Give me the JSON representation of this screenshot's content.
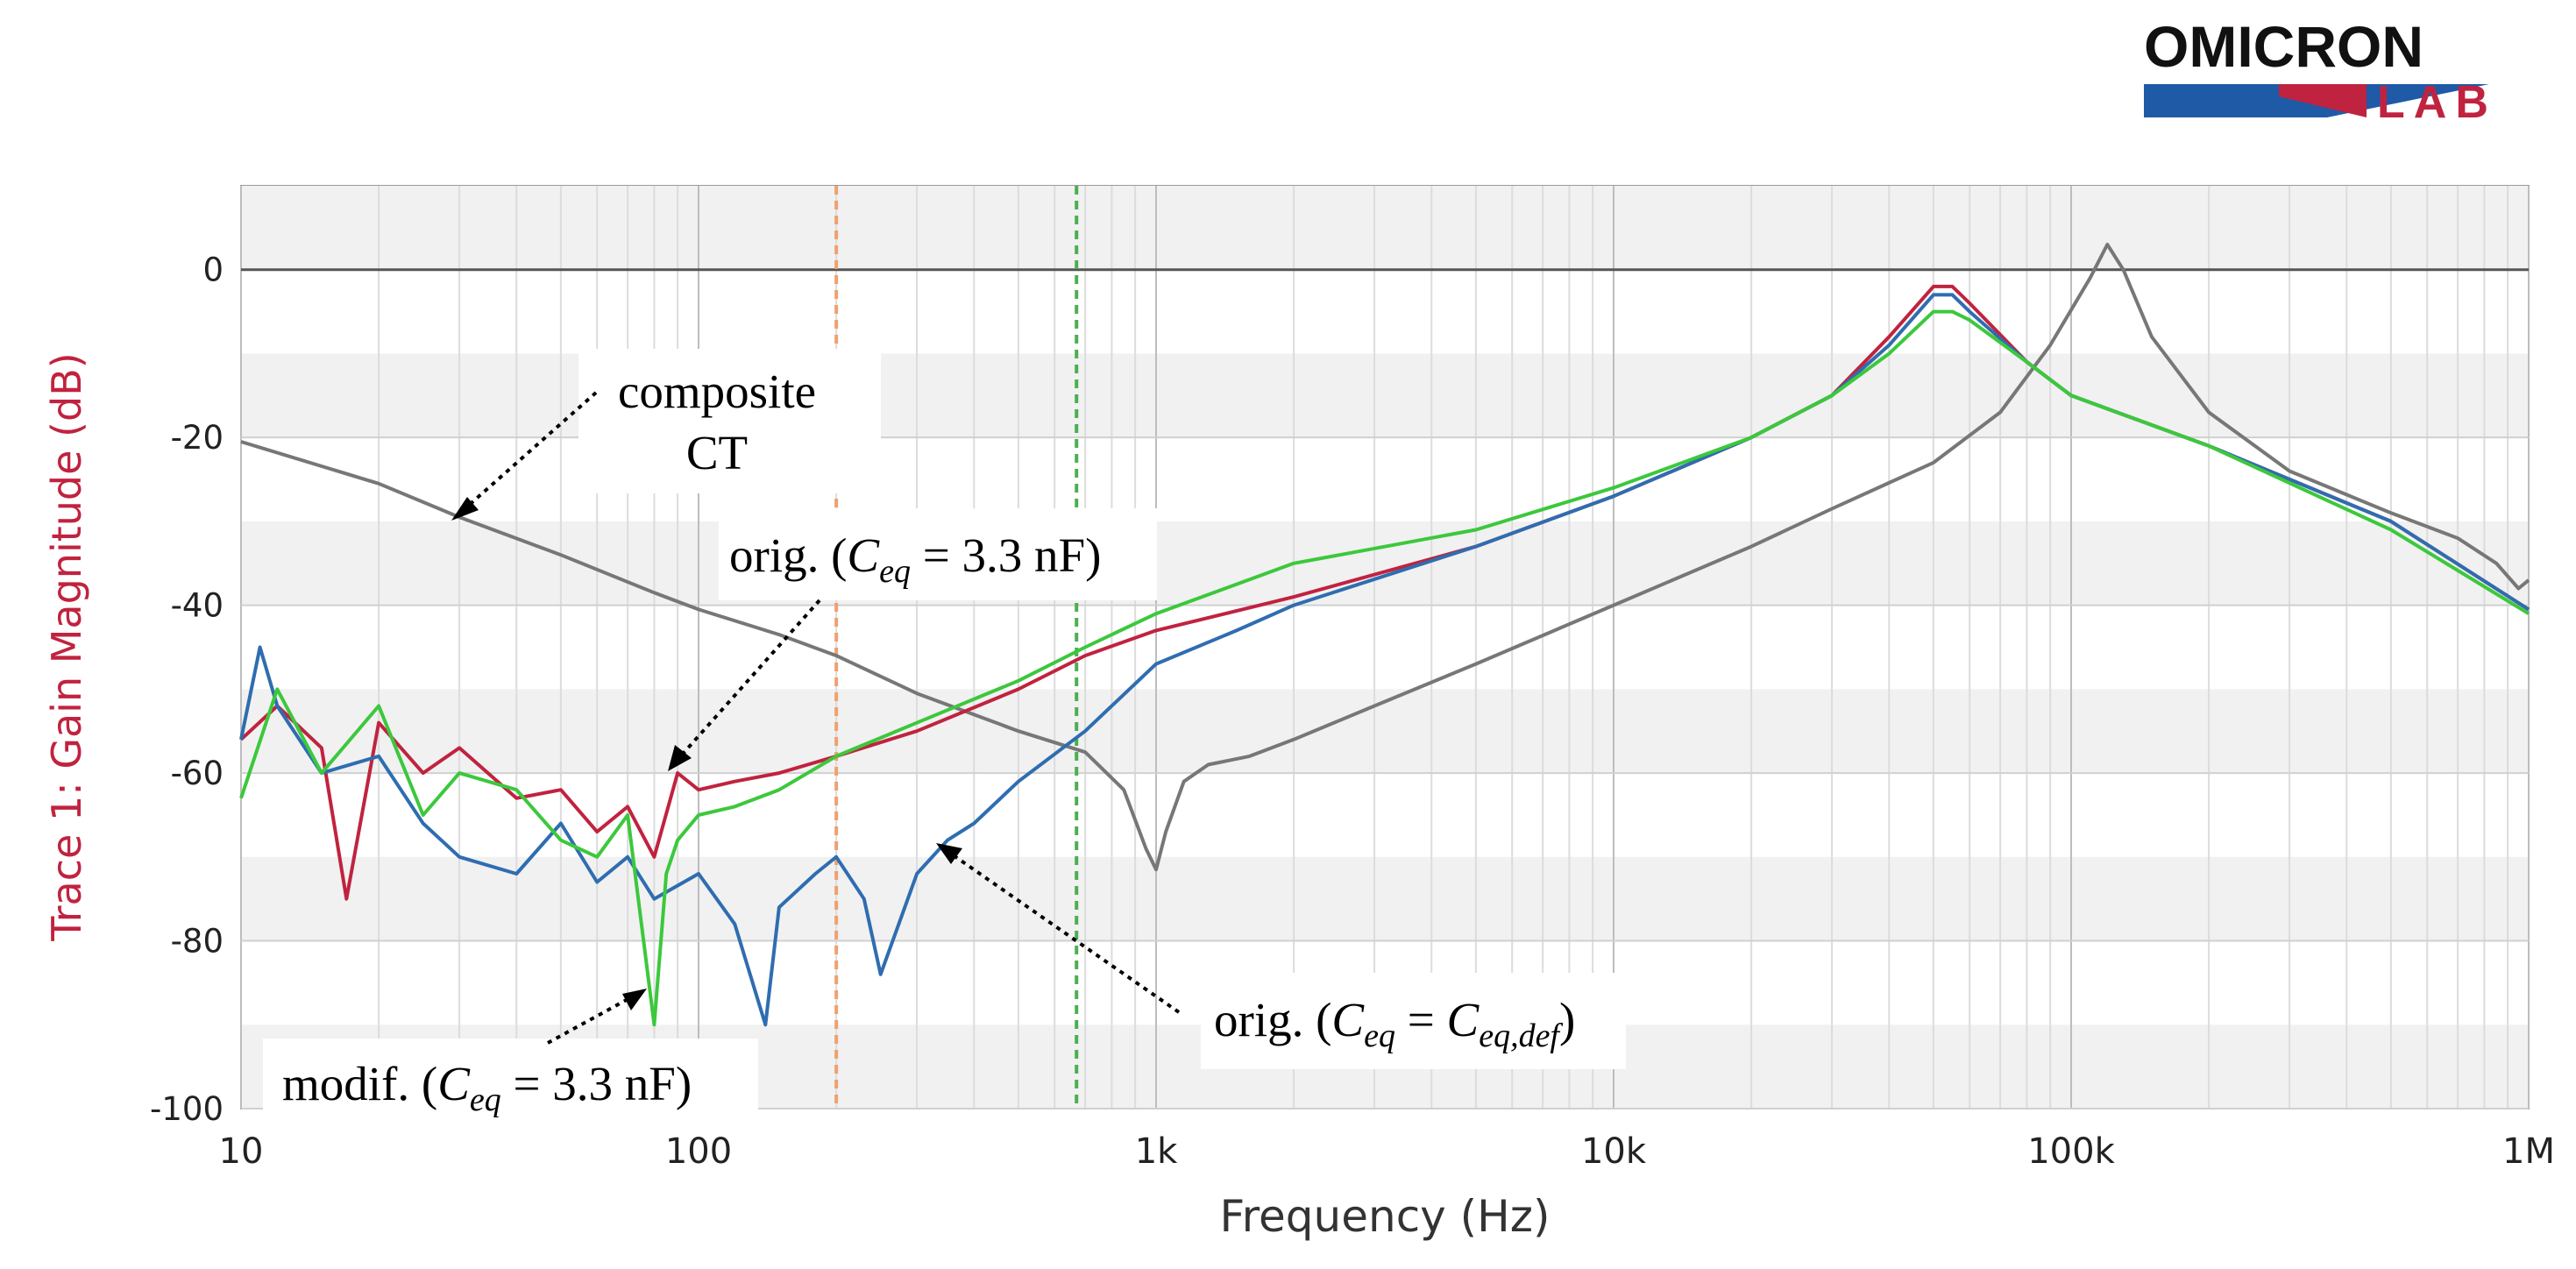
{
  "logo": {
    "line1": "OMICRON",
    "line2": "LAB",
    "brand_red": "#c0233f",
    "brand_blue": "#1f5aa6"
  },
  "chart_data": {
    "type": "line",
    "xscale": "log",
    "xlim": [
      10,
      1000000
    ],
    "ylim": [
      -100,
      10
    ],
    "xlabel": "Frequency (Hz)",
    "ylabel": "Trace 1: Gain Magnitude (dB)",
    "xticks": [
      {
        "v": 10,
        "label": "10"
      },
      {
        "v": 100,
        "label": "100"
      },
      {
        "v": 1000,
        "label": "1k"
      },
      {
        "v": 10000,
        "label": "10k"
      },
      {
        "v": 100000,
        "label": "100k"
      },
      {
        "v": 1000000,
        "label": "1M"
      }
    ],
    "yticks": [
      {
        "v": 0,
        "label": "0"
      },
      {
        "v": -20,
        "label": "-20"
      },
      {
        "v": -40,
        "label": "-40"
      },
      {
        "v": -60,
        "label": "-60"
      },
      {
        "v": -80,
        "label": "-80"
      },
      {
        "v": -100,
        "label": "-100"
      }
    ],
    "cursors": [
      {
        "x": 200,
        "color": "#f0a070"
      },
      {
        "x": 670,
        "color": "#4caf50"
      }
    ],
    "series": [
      {
        "name": "composite CT",
        "color": "#777777",
        "points": [
          [
            10,
            -20.5
          ],
          [
            20,
            -25.5
          ],
          [
            30,
            -29.5
          ],
          [
            50,
            -34
          ],
          [
            80,
            -38.5
          ],
          [
            100,
            -40.5
          ],
          [
            150,
            -43.5
          ],
          [
            200,
            -46
          ],
          [
            300,
            -50.5
          ],
          [
            500,
            -55
          ],
          [
            700,
            -57.5
          ],
          [
            850,
            -62
          ],
          [
            950,
            -69
          ],
          [
            1000,
            -71.5
          ],
          [
            1050,
            -67
          ],
          [
            1150,
            -61
          ],
          [
            1300,
            -59
          ],
          [
            1600,
            -58
          ],
          [
            2000,
            -56
          ],
          [
            3000,
            -52
          ],
          [
            5000,
            -47
          ],
          [
            10000,
            -40
          ],
          [
            20000,
            -33
          ],
          [
            30000,
            -28.5
          ],
          [
            50000,
            -23
          ],
          [
            70000,
            -17
          ],
          [
            90000,
            -9
          ],
          [
            110000,
            -1
          ],
          [
            120000,
            3
          ],
          [
            130000,
            0
          ],
          [
            150000,
            -8
          ],
          [
            200000,
            -17
          ],
          [
            300000,
            -24
          ],
          [
            500000,
            -29
          ],
          [
            700000,
            -32
          ],
          [
            850000,
            -35
          ],
          [
            950000,
            -38
          ],
          [
            1000000,
            -37
          ]
        ]
      },
      {
        "name": "orig. (Ceq = 3.3 nF)",
        "color": "#c0233f",
        "points": [
          [
            10,
            -56
          ],
          [
            12,
            -52
          ],
          [
            15,
            -57
          ],
          [
            17,
            -75
          ],
          [
            20,
            -54
          ],
          [
            25,
            -60
          ],
          [
            30,
            -57
          ],
          [
            40,
            -63
          ],
          [
            50,
            -62
          ],
          [
            60,
            -67
          ],
          [
            70,
            -64
          ],
          [
            80,
            -70
          ],
          [
            90,
            -60
          ],
          [
            100,
            -62
          ],
          [
            120,
            -61
          ],
          [
            150,
            -60
          ],
          [
            200,
            -58
          ],
          [
            300,
            -55
          ],
          [
            500,
            -50
          ],
          [
            700,
            -46
          ],
          [
            1000,
            -43
          ],
          [
            2000,
            -39
          ],
          [
            5000,
            -33
          ],
          [
            10000,
            -27
          ],
          [
            20000,
            -20
          ],
          [
            30000,
            -15
          ],
          [
            40000,
            -8
          ],
          [
            50000,
            -2
          ],
          [
            55000,
            -2
          ],
          [
            60000,
            -4
          ],
          [
            80000,
            -11
          ],
          [
            100000,
            -15
          ],
          [
            200000,
            -21
          ],
          [
            500000,
            -30
          ],
          [
            1000000,
            -40.5
          ]
        ]
      },
      {
        "name": "orig. (Ceq = Ceq,def)",
        "color": "#2f6db0",
        "points": [
          [
            10,
            -56
          ],
          [
            11,
            -45
          ],
          [
            12,
            -52
          ],
          [
            15,
            -60
          ],
          [
            20,
            -58
          ],
          [
            25,
            -66
          ],
          [
            30,
            -70
          ],
          [
            40,
            -72
          ],
          [
            50,
            -66
          ],
          [
            60,
            -73
          ],
          [
            70,
            -70
          ],
          [
            80,
            -75
          ],
          [
            100,
            -72
          ],
          [
            120,
            -78
          ],
          [
            140,
            -90
          ],
          [
            150,
            -76
          ],
          [
            180,
            -72
          ],
          [
            200,
            -70
          ],
          [
            230,
            -75
          ],
          [
            250,
            -84
          ],
          [
            300,
            -72
          ],
          [
            350,
            -68
          ],
          [
            400,
            -66
          ],
          [
            500,
            -61
          ],
          [
            700,
            -55
          ],
          [
            1000,
            -47
          ],
          [
            1500,
            -43
          ],
          [
            2000,
            -40
          ],
          [
            5000,
            -33
          ],
          [
            10000,
            -27
          ],
          [
            20000,
            -20
          ],
          [
            30000,
            -15
          ],
          [
            40000,
            -9
          ],
          [
            50000,
            -3
          ],
          [
            55000,
            -3
          ],
          [
            60000,
            -5
          ],
          [
            80000,
            -11
          ],
          [
            100000,
            -15
          ],
          [
            200000,
            -21
          ],
          [
            500000,
            -30
          ],
          [
            1000000,
            -40.5
          ]
        ]
      },
      {
        "name": "modif. (Ceq = 3.3 nF)",
        "color": "#3cc83c",
        "points": [
          [
            10,
            -63
          ],
          [
            12,
            -50
          ],
          [
            15,
            -60
          ],
          [
            20,
            -52
          ],
          [
            25,
            -65
          ],
          [
            30,
            -60
          ],
          [
            40,
            -62
          ],
          [
            50,
            -68
          ],
          [
            60,
            -70
          ],
          [
            70,
            -65
          ],
          [
            80,
            -90
          ],
          [
            85,
            -72
          ],
          [
            90,
            -68
          ],
          [
            100,
            -65
          ],
          [
            120,
            -64
          ],
          [
            150,
            -62
          ],
          [
            200,
            -58
          ],
          [
            300,
            -54
          ],
          [
            500,
            -49
          ],
          [
            700,
            -45
          ],
          [
            1000,
            -41
          ],
          [
            2000,
            -35
          ],
          [
            5000,
            -31
          ],
          [
            10000,
            -26
          ],
          [
            20000,
            -20
          ],
          [
            30000,
            -15
          ],
          [
            40000,
            -10
          ],
          [
            50000,
            -5
          ],
          [
            55000,
            -5
          ],
          [
            60000,
            -6
          ],
          [
            80000,
            -11
          ],
          [
            100000,
            -15
          ],
          [
            200000,
            -21
          ],
          [
            500000,
            -31
          ],
          [
            1000000,
            -41
          ]
        ]
      }
    ],
    "annotations": [
      {
        "lines": [
          "composite",
          "CT"
        ]
      },
      {
        "text": "orig. (",
        "sym": "C",
        "sub": "eq",
        "rest": " = 3.3 nF)"
      },
      {
        "text": "orig. (",
        "sym": "C",
        "sub": "eq",
        "mid": " = ",
        "sym2": "C",
        "sub2": "eq,def",
        "rest": ")"
      },
      {
        "text": "modif. (",
        "sym": "C",
        "sub": "eq",
        "rest": " = 3.3 nF)"
      }
    ]
  }
}
